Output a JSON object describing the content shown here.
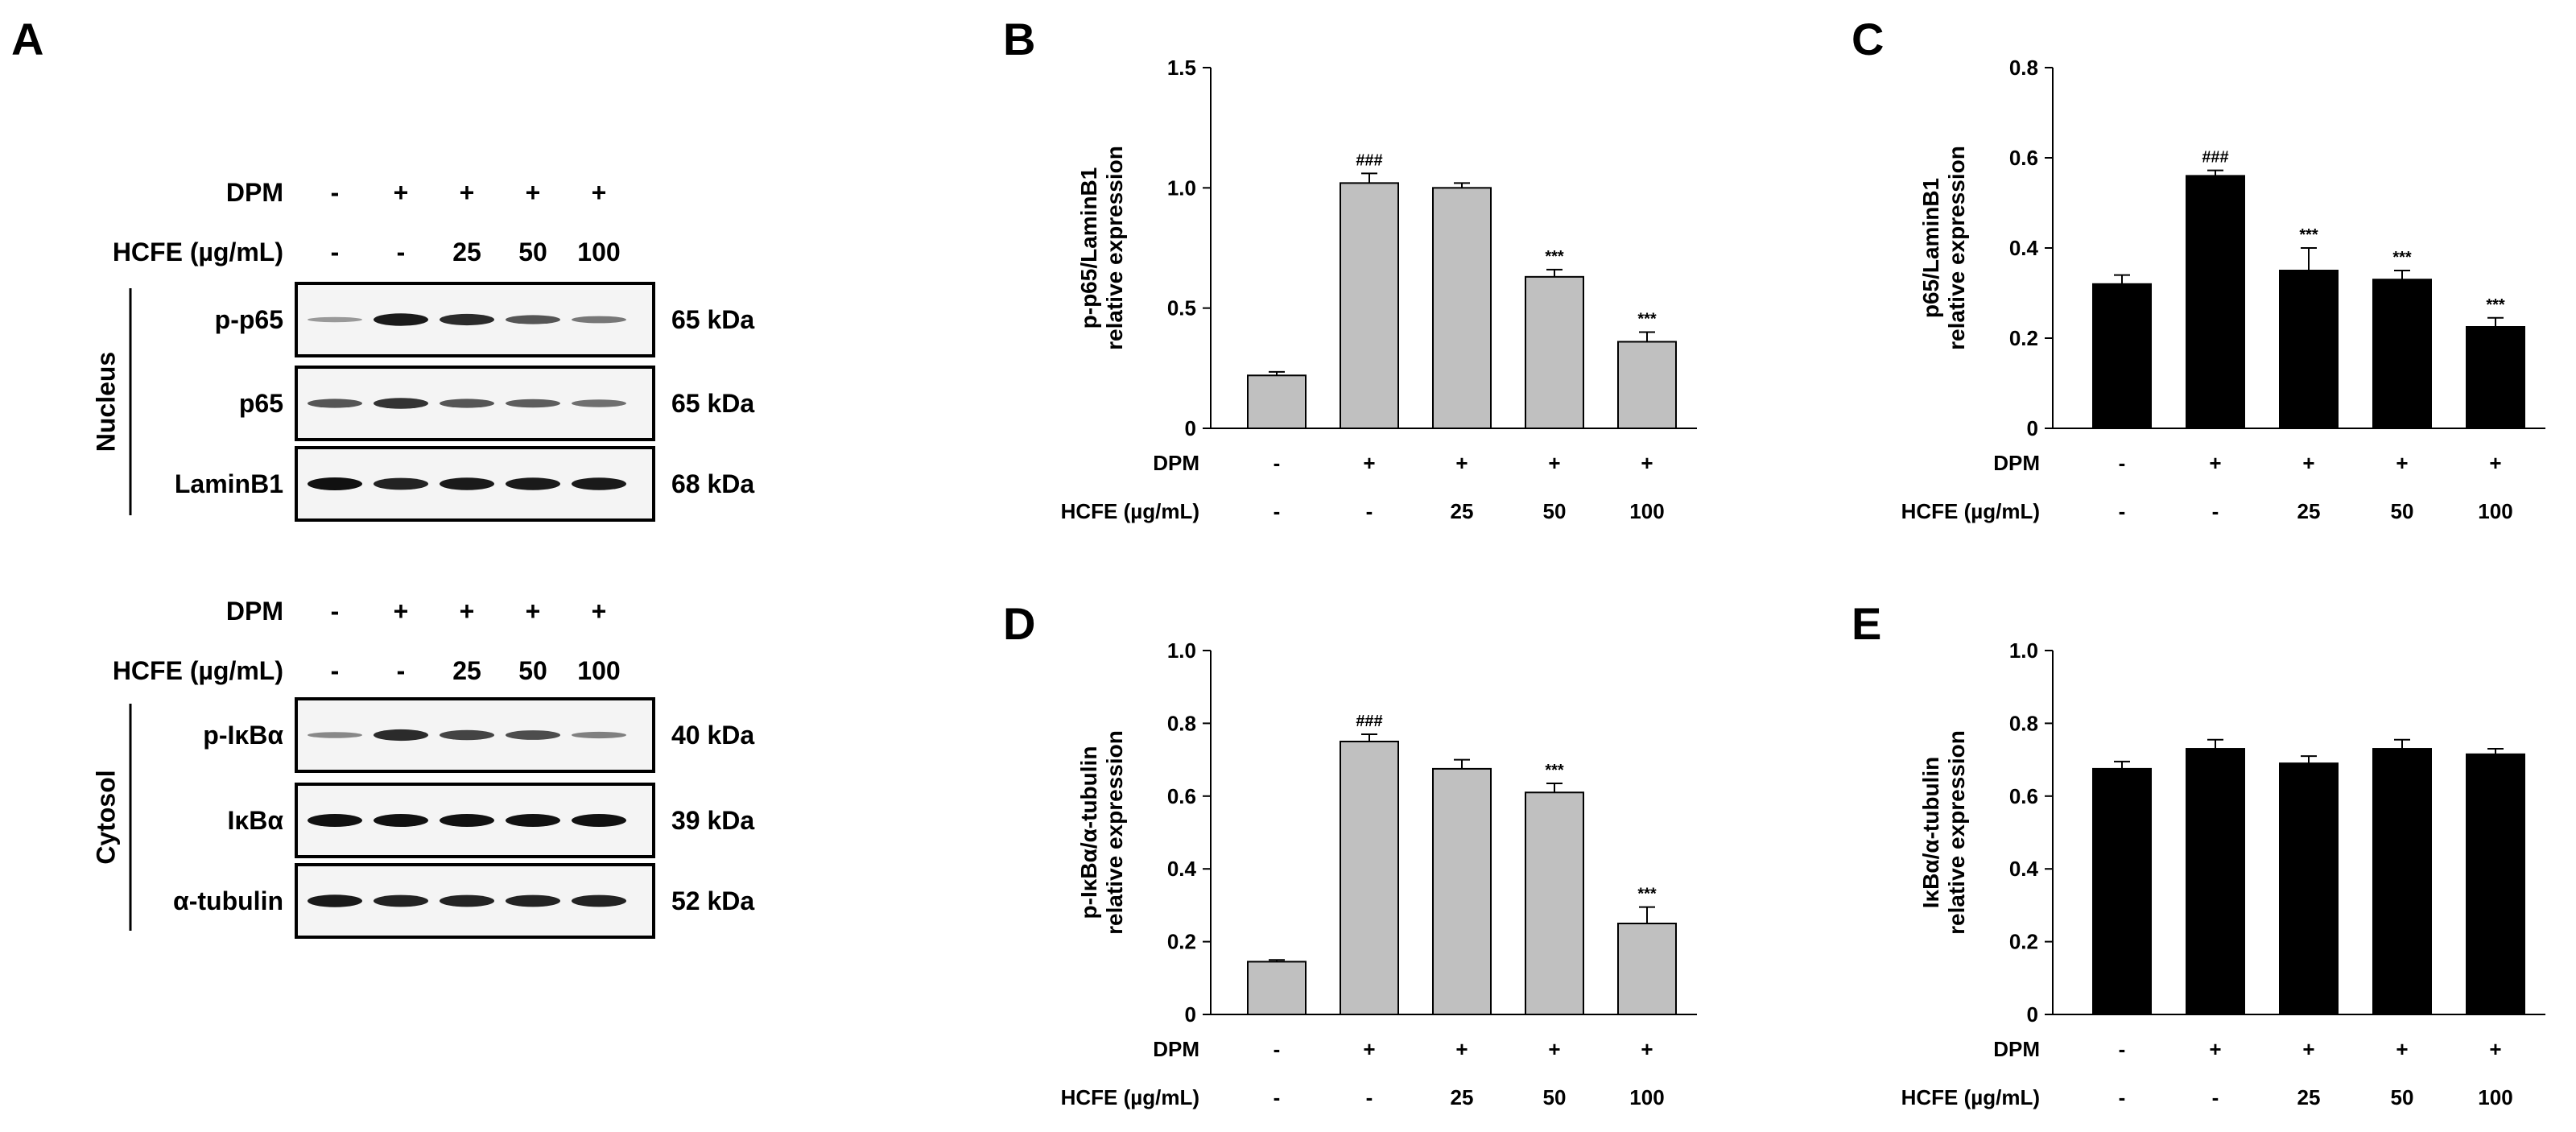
{
  "panel_letters": [
    "A",
    "B",
    "C",
    "D",
    "E"
  ],
  "western_blot": {
    "nucleus": {
      "section_label": "Nucleus",
      "dpm_label": "DPM",
      "dpm": [
        "-",
        "+",
        "+",
        "+",
        "+"
      ],
      "hcfe_label": "HCFE (µg/mL)",
      "hcfe": [
        "-",
        "-",
        "25",
        "50",
        "100"
      ],
      "blots": [
        {
          "protein": "p-p65",
          "kda": "65 kDa",
          "intensity": [
            0.2,
            0.95,
            0.85,
            0.6,
            0.4
          ]
        },
        {
          "protein": "p65",
          "kda": "65 kDa",
          "intensity": [
            0.6,
            0.8,
            0.6,
            0.55,
            0.45
          ]
        },
        {
          "protein": "LaminB1",
          "kda": "68 kDa",
          "intensity": [
            1,
            0.9,
            0.95,
            0.95,
            0.95
          ]
        }
      ]
    },
    "cytosol": {
      "section_label": "Cytosol",
      "dpm_label": "DPM",
      "dpm": [
        "-",
        "+",
        "+",
        "+",
        "+"
      ],
      "hcfe_label": "HCFE (µg/mL)",
      "hcfe": [
        "-",
        "-",
        "25",
        "50",
        "100"
      ],
      "blots": [
        {
          "protein": "p-IκBα",
          "kda": "40 kDa",
          "intensity": [
            0.3,
            0.85,
            0.7,
            0.65,
            0.35
          ]
        },
        {
          "protein": "IκBα",
          "kda": "39 kDa",
          "intensity": [
            1,
            1,
            1,
            1,
            1
          ]
        },
        {
          "protein": "α-tubulin",
          "kda": "52 kDa",
          "intensity": [
            0.95,
            0.9,
            0.9,
            0.9,
            0.9
          ]
        }
      ]
    }
  },
  "chart_data": [
    {
      "panel": "B",
      "type": "bar",
      "ylabel": [
        "p-p65/LaminB1",
        "relative expression"
      ],
      "ylim": [
        0,
        1.5
      ],
      "yticks": [
        "0",
        "0.5",
        "1.0",
        "1.5"
      ],
      "ytick_values": [
        0,
        0.5,
        1.0,
        1.5
      ],
      "bar_color": "#c0c0c0",
      "values": [
        0.22,
        1.02,
        1.0,
        0.63,
        0.36
      ],
      "errors": [
        0.015,
        0.04,
        0.02,
        0.03,
        0.04
      ],
      "annotations": [
        "",
        "###",
        "",
        "***",
        "***"
      ],
      "dpm_label": "DPM",
      "dpm": [
        "-",
        "+",
        "+",
        "+",
        "+"
      ],
      "hcfe_label": "HCFE (µg/mL)",
      "hcfe": [
        "-",
        "-",
        "25",
        "50",
        "100"
      ]
    },
    {
      "panel": "C",
      "type": "bar",
      "ylabel": [
        "p65/LaminB1",
        "relative expression"
      ],
      "ylim": [
        0,
        0.8
      ],
      "yticks": [
        "0",
        "0.2",
        "0.4",
        "0.6",
        "0.8"
      ],
      "ytick_values": [
        0,
        0.2,
        0.4,
        0.6,
        0.8
      ],
      "bar_color": "#000000",
      "values": [
        0.32,
        0.56,
        0.35,
        0.33,
        0.225
      ],
      "errors": [
        0.02,
        0.012,
        0.05,
        0.02,
        0.02
      ],
      "annotations": [
        "",
        "###",
        "***",
        "***",
        "***"
      ],
      "dpm_label": "DPM",
      "dpm": [
        "-",
        "+",
        "+",
        "+",
        "+"
      ],
      "hcfe_label": "HCFE (µg/mL)",
      "hcfe": [
        "-",
        "-",
        "25",
        "50",
        "100"
      ]
    },
    {
      "panel": "D",
      "type": "bar",
      "ylabel": [
        "p-IκBα/α-tubulin",
        "relative expression"
      ],
      "ylim": [
        0,
        1.0
      ],
      "yticks": [
        "0",
        "0.2",
        "0.4",
        "0.6",
        "0.8",
        "1.0"
      ],
      "ytick_values": [
        0,
        0.2,
        0.4,
        0.6,
        0.8,
        1.0
      ],
      "bar_color": "#c0c0c0",
      "values": [
        0.145,
        0.75,
        0.675,
        0.61,
        0.25
      ],
      "errors": [
        0.005,
        0.02,
        0.025,
        0.025,
        0.045
      ],
      "annotations": [
        "",
        "###",
        "",
        "***",
        "***"
      ],
      "dpm_label": "DPM",
      "dpm": [
        "-",
        "+",
        "+",
        "+",
        "+"
      ],
      "hcfe_label": "HCFE (µg/mL)",
      "hcfe": [
        "-",
        "-",
        "25",
        "50",
        "100"
      ]
    },
    {
      "panel": "E",
      "type": "bar",
      "ylabel": [
        "IκBα/α-tubulin",
        "relative expression"
      ],
      "ylim": [
        0,
        1.0
      ],
      "yticks": [
        "0",
        "0.2",
        "0.4",
        "0.6",
        "0.8",
        "1.0"
      ],
      "ytick_values": [
        0,
        0.2,
        0.4,
        0.6,
        0.8,
        1.0
      ],
      "bar_color": "#000000",
      "values": [
        0.675,
        0.73,
        0.69,
        0.73,
        0.715
      ],
      "errors": [
        0.02,
        0.025,
        0.02,
        0.025,
        0.015
      ],
      "annotations": [
        "",
        "",
        "",
        "",
        ""
      ],
      "dpm_label": "DPM",
      "dpm": [
        "-",
        "+",
        "+",
        "+",
        "+"
      ],
      "hcfe_label": "HCFE (µg/mL)",
      "hcfe": [
        "-",
        "-",
        "25",
        "50",
        "100"
      ]
    }
  ]
}
